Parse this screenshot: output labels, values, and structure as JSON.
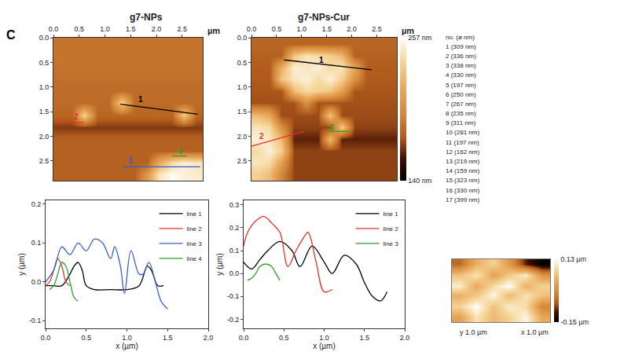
{
  "panel_label": "C",
  "particle_list": {
    "header": "no. (ø nm)",
    "items": [
      "1 (309 nm)",
      "2 (336 nm)",
      "3 (338 nm)",
      "4 (330 nm)",
      "5 (197 nm)",
      "6 (250 nm)",
      "7 (267 nm)",
      "8 (235 nm)",
      "9 (311 nm)",
      "10 (281 nm)",
      "11 (197 nm)",
      "12 (162 nm)",
      "13 (219 nm)",
      "14 (159 nm)",
      "15 (323 nm)",
      "16 (330 nm)",
      "17 (399 nm)"
    ]
  },
  "chart_data": [
    {
      "type": "heatmap",
      "title": "g7-NPs",
      "unit_label": "µm",
      "grid": false,
      "x": [
        0.12,
        0.36,
        0.6,
        0.85,
        1.09,
        1.33,
        1.57,
        1.81,
        2.05,
        2.3,
        2.54,
        2.78
      ],
      "y": [
        0.12,
        0.36,
        0.6,
        0.85,
        1.09,
        1.33,
        1.57,
        1.81,
        2.05,
        2.3,
        2.54,
        2.78
      ],
      "z": [
        [
          186,
          186,
          186,
          186,
          186,
          186,
          186,
          186,
          186,
          186,
          186,
          186
        ],
        [
          186,
          186,
          186,
          186,
          186,
          186,
          186,
          186,
          186,
          186,
          186,
          186
        ],
        [
          185,
          185,
          185,
          185,
          185,
          185,
          185,
          185,
          185,
          185,
          185,
          185
        ],
        [
          184,
          184,
          184,
          184,
          184,
          184,
          184,
          184,
          184,
          184,
          184,
          184
        ],
        [
          183,
          183,
          183,
          183,
          183,
          183,
          183,
          183,
          183,
          183,
          183,
          183
        ],
        [
          182,
          182,
          182,
          182,
          182,
          236,
          182,
          182,
          182,
          182,
          182,
          182
        ],
        [
          180,
          180,
          238,
          180,
          180,
          180,
          180,
          180,
          180,
          180,
          232,
          180
        ],
        [
          168,
          168,
          168,
          168,
          168,
          168,
          168,
          168,
          168,
          168,
          168,
          168
        ],
        [
          178,
          178,
          178,
          178,
          178,
          178,
          178,
          178,
          178,
          178,
          178,
          178
        ],
        [
          178,
          178,
          178,
          178,
          178,
          178,
          178,
          178,
          178,
          178,
          178,
          178
        ],
        [
          178,
          178,
          178,
          178,
          178,
          178,
          178,
          178,
          215,
          240,
          250,
          245
        ],
        [
          178,
          178,
          178,
          178,
          178,
          178,
          178,
          205,
          245,
          255,
          250,
          248
        ]
      ],
      "zlim": [
        140,
        257
      ],
      "xlim": [
        0,
        2.9
      ],
      "ylim": [
        2.9,
        0
      ],
      "xticks": [
        {
          "value": 0,
          "label": "0.0"
        },
        0.5,
        {
          "value": 1,
          "label": "1.0"
        },
        1.5,
        {
          "value": 2,
          "label": "2.0"
        },
        2.5
      ],
      "yticks": [
        {
          "value": 0,
          "label": "0.0"
        },
        0.5,
        {
          "value": 1,
          "label": "1.0"
        },
        1.5,
        {
          "value": 2,
          "label": "2.0"
        },
        2.5
      ],
      "lines": [
        {
          "label": "1",
          "color": "#000000",
          "x": [
            1.3,
            2.8
          ],
          "y": [
            1.35,
            1.55
          ],
          "label_at": [
            1.7,
            1.25
          ]
        },
        {
          "label": "2",
          "color": "#e8302a",
          "x": [
            0.05,
            0.6
          ],
          "y": [
            1.72,
            1.72
          ],
          "label_at": [
            0.45,
            1.6
          ]
        },
        {
          "label": "3",
          "color": "#3a5fcd",
          "x": [
            1.35,
            2.85
          ],
          "y": [
            2.62,
            2.62
          ],
          "label_at": [
            1.5,
            2.5
          ]
        },
        {
          "label": "4",
          "color": "#2ca02c",
          "x": [
            2.3,
            2.6
          ],
          "y": [
            2.4,
            2.4
          ],
          "label_at": [
            2.45,
            2.3
          ]
        }
      ]
    },
    {
      "type": "heatmap",
      "title": "g7-NPs-Cur",
      "unit_label": "µm",
      "grid": false,
      "x": [
        0.12,
        0.36,
        0.6,
        0.85,
        1.09,
        1.33,
        1.57,
        1.81,
        2.05,
        2.3,
        2.54,
        2.78
      ],
      "y": [
        0.12,
        0.36,
        0.6,
        0.85,
        1.09,
        1.33,
        1.57,
        1.81,
        2.05,
        2.3,
        2.54,
        2.78
      ],
      "z": [
        [
          180,
          180,
          180,
          180,
          180,
          180,
          180,
          180,
          180,
          180,
          180,
          180
        ],
        [
          178,
          178,
          178,
          230,
          245,
          240,
          235,
          225,
          178,
          178,
          178,
          178
        ],
        [
          176,
          176,
          220,
          250,
          245,
          250,
          240,
          245,
          215,
          176,
          176,
          176
        ],
        [
          175,
          175,
          230,
          245,
          250,
          240,
          250,
          235,
          200,
          175,
          175,
          175
        ],
        [
          174,
          174,
          174,
          225,
          240,
          235,
          230,
          210,
          174,
          174,
          174,
          174
        ],
        [
          173,
          173,
          173,
          173,
          200,
          173,
          173,
          173,
          173,
          173,
          173,
          173
        ],
        [
          225,
          215,
          172,
          172,
          172,
          172,
          230,
          172,
          172,
          172,
          172,
          172
        ],
        [
          245,
          240,
          200,
          170,
          170,
          170,
          170,
          235,
          170,
          170,
          170,
          170
        ],
        [
          250,
          245,
          225,
          162,
          162,
          162,
          225,
          162,
          162,
          162,
          162,
          162
        ],
        [
          240,
          250,
          235,
          170,
          170,
          170,
          170,
          170,
          170,
          170,
          170,
          170
        ],
        [
          245,
          240,
          210,
          170,
          170,
          170,
          170,
          170,
          170,
          170,
          170,
          170
        ],
        [
          235,
          225,
          195,
          170,
          170,
          170,
          170,
          170,
          170,
          170,
          170,
          170
        ]
      ],
      "zlim": [
        140,
        257
      ],
      "colorbar_ticks": [
        {
          "value": 140,
          "label": "140 nm"
        },
        {
          "value": 257,
          "label": "257 nm"
        }
      ],
      "xlim": [
        0,
        2.9
      ],
      "ylim": [
        2.9,
        0
      ],
      "xticks": [
        {
          "value": 0,
          "label": "0.0"
        },
        0.5,
        {
          "value": 1,
          "label": "1.0"
        },
        1.5,
        {
          "value": 2,
          "label": "2.0"
        },
        2.5
      ],
      "yticks": [
        {
          "value": 0,
          "label": "0.0"
        },
        0.5,
        {
          "value": 1,
          "label": "1.0"
        },
        1.5,
        {
          "value": 2,
          "label": "2.0"
        },
        2.5
      ],
      "lines": [
        {
          "label": "1",
          "color": "#000000",
          "x": [
            0.65,
            2.4
          ],
          "y": [
            0.45,
            0.65
          ],
          "label_at": [
            1.4,
            0.45
          ]
        },
        {
          "label": "2",
          "color": "#e8302a",
          "x": [
            0.0,
            1.05
          ],
          "y": [
            2.2,
            1.9
          ],
          "label_at": [
            0.2,
            2.0
          ]
        },
        {
          "label": "3",
          "color": "#2ca02c",
          "x": [
            1.55,
            1.95
          ],
          "y": [
            1.9,
            1.9
          ],
          "label_at": [
            1.6,
            1.82
          ]
        }
      ]
    },
    {
      "type": "line",
      "xlabel": "x (µm)",
      "ylabel": "y (µm)",
      "legend": "upper right",
      "grid": false,
      "xlim": [
        0,
        2.0
      ],
      "ylim": [
        -0.12,
        0.21
      ],
      "xticks": [
        {
          "value": 0,
          "label": "0.0"
        },
        0.5,
        {
          "value": 1,
          "label": "1.0"
        },
        1.5,
        {
          "value": 2,
          "label": "2.0"
        }
      ],
      "yticks": [
        -0.1,
        {
          "value": 0,
          "label": "0.0"
        },
        0.1,
        0.2
      ],
      "series": [
        {
          "name": "line 1",
          "color": "#000000",
          "x": [
            0,
            0.1,
            0.2,
            0.3,
            0.35,
            0.4,
            0.45,
            0.5,
            0.6,
            0.8,
            1.0,
            1.15,
            1.25,
            1.3,
            1.38,
            1.45
          ],
          "values": [
            -0.01,
            -0.01,
            -0.01,
            0.02,
            0.04,
            0.05,
            0.03,
            -0.01,
            -0.02,
            -0.02,
            -0.02,
            -0.01,
            0.04,
            0.03,
            -0.01,
            -0.01
          ]
        },
        {
          "name": "line 2",
          "color": "#e8302a",
          "x": [
            0,
            0.05,
            0.1,
            0.15,
            0.2,
            0.25,
            0.3
          ],
          "values": [
            -0.01,
            0.0,
            0.03,
            0.06,
            0.04,
            0.0,
            -0.01
          ]
        },
        {
          "name": "line 3",
          "color": "#3a5fcd",
          "x": [
            0,
            0.1,
            0.2,
            0.3,
            0.4,
            0.5,
            0.6,
            0.7,
            0.8,
            0.85,
            0.92,
            0.97,
            1.05,
            1.15,
            1.2,
            1.27,
            1.35,
            1.42,
            1.5
          ],
          "values": [
            0,
            0.03,
            0.09,
            0.07,
            0.1,
            0.08,
            0.11,
            0.1,
            0.06,
            0.09,
            0.04,
            -0.03,
            0.08,
            0.02,
            0.02,
            0.05,
            0.0,
            -0.05,
            -0.07
          ]
        },
        {
          "name": "line 4",
          "color": "#2ca02c",
          "x": [
            0.05,
            0.1,
            0.15,
            0.2,
            0.25,
            0.3,
            0.35,
            0.4
          ],
          "values": [
            -0.02,
            -0.01,
            0.02,
            0.05,
            0.04,
            0.0,
            -0.04,
            -0.05
          ]
        }
      ]
    },
    {
      "type": "line",
      "xlabel": "x (µm)",
      "ylabel": "y (µm)",
      "legend": "upper right",
      "grid": false,
      "xlim": [
        0,
        2.0
      ],
      "ylim": [
        -0.24,
        0.32
      ],
      "xticks": [
        {
          "value": 0,
          "label": "0.0"
        },
        0.5,
        {
          "value": 1,
          "label": "1.0"
        },
        1.5,
        {
          "value": 2,
          "label": "2.0"
        }
      ],
      "yticks": [
        -0.2,
        -0.1,
        {
          "value": 0,
          "label": "0.0"
        },
        0.1,
        0.2,
        0.3
      ],
      "series": [
        {
          "name": "line 1",
          "color": "#000000",
          "x": [
            0,
            0.1,
            0.2,
            0.3,
            0.45,
            0.6,
            0.7,
            0.85,
            1.0,
            1.1,
            1.25,
            1.4,
            1.5,
            1.6,
            1.7,
            1.78
          ],
          "values": [
            0.05,
            0.02,
            0.06,
            0.1,
            0.14,
            0.1,
            0.03,
            0.12,
            0.05,
            0.0,
            0.08,
            0.04,
            -0.04,
            -0.1,
            -0.12,
            -0.08
          ]
        },
        {
          "name": "line 2",
          "color": "#e8302a",
          "x": [
            0,
            0.05,
            0.15,
            0.25,
            0.35,
            0.45,
            0.55,
            0.65,
            0.75,
            0.8,
            0.9,
            1.0,
            1.1
          ],
          "values": [
            0.12,
            0.18,
            0.23,
            0.25,
            0.22,
            0.18,
            0.03,
            0.1,
            0.16,
            0.18,
            0.05,
            -0.08,
            -0.07
          ]
        },
        {
          "name": "line 3",
          "color": "#2ca02c",
          "x": [
            0.05,
            0.1,
            0.15,
            0.2,
            0.25,
            0.3,
            0.35,
            0.4,
            0.45
          ],
          "values": [
            -0.03,
            -0.02,
            0.0,
            0.03,
            0.04,
            0.04,
            0.03,
            0.0,
            -0.03
          ]
        }
      ]
    },
    {
      "type": "heatmap",
      "tick_labels": false,
      "grid": false,
      "xlabel": "x 1.0 µm",
      "ylabel": "y 1.0 µm",
      "x": [
        0.08,
        0.25,
        0.42,
        0.58,
        0.75,
        0.92
      ],
      "y": [
        0.08,
        0.25,
        0.42,
        0.58,
        0.75,
        0.92
      ],
      "z": [
        [
          0.02,
          0.1,
          0.05,
          0.08,
          0.12,
          0.03
        ],
        [
          0.08,
          0.13,
          0.06,
          0.11,
          0.09,
          -0.02
        ],
        [
          0.04,
          0.07,
          0.12,
          0.05,
          0.1,
          0.06
        ],
        [
          0.11,
          0.03,
          0.09,
          0.13,
          0.04,
          0.08
        ],
        [
          0.06,
          0.1,
          0.02,
          0.07,
          0.11,
          0.0
        ],
        [
          -0.05,
          0.04,
          0.08,
          0.01,
          -0.1,
          -0.15
        ]
      ],
      "xlim": [
        0,
        1
      ],
      "ylim": [
        0,
        1
      ],
      "zlim": [
        -0.15,
        0.13
      ],
      "colorbar_ticks": [
        {
          "value": -0.15,
          "label": "-0.15 µm"
        },
        {
          "value": 0.13,
          "label": "0.13 µm"
        }
      ]
    }
  ]
}
